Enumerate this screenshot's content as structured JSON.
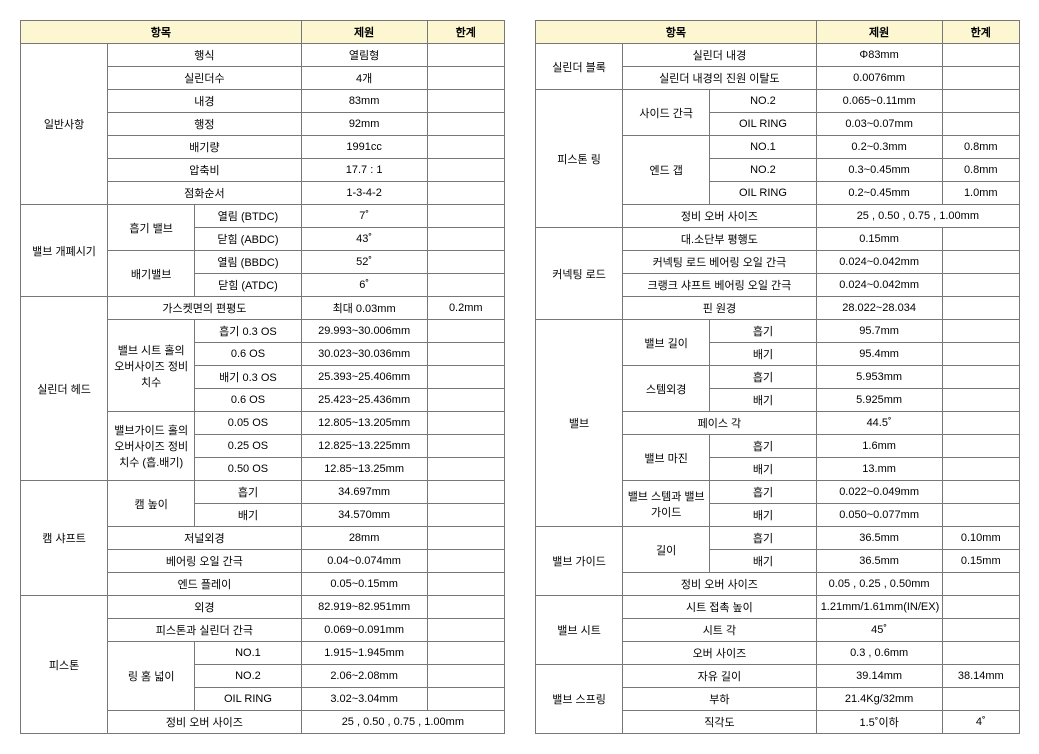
{
  "headers": {
    "item": "항목",
    "spec": "제원",
    "limit": "한계"
  },
  "colors": {
    "header_bg": "#FCF6D1",
    "border": "#777"
  },
  "left": {
    "general": {
      "label": "일반사항",
      "rows": [
        {
          "l": "행식",
          "s": "열림형"
        },
        {
          "l": "실린더수",
          "s": "4개"
        },
        {
          "l": "내경",
          "s": "83mm"
        },
        {
          "l": "행정",
          "s": "92mm"
        },
        {
          "l": "배기량",
          "s": "1991cc"
        },
        {
          "l": "압축비",
          "s": "17.7 : 1"
        },
        {
          "l": "점화순서",
          "s": "1-3-4-2"
        }
      ]
    },
    "valve_timing": {
      "label": "밸브 개폐시기",
      "intake": {
        "label": "흡기 밸브",
        "open": "열림 (BTDC)",
        "open_v": "7˚",
        "close": "닫힘 (ABDC)",
        "close_v": "43˚"
      },
      "exhaust": {
        "label": "배기밸브",
        "open": "열림 (BBDC)",
        "open_v": "52˚",
        "close": "닫힘 (ATDC)",
        "close_v": "6˚"
      }
    },
    "head": {
      "label": "실린더 헤드",
      "flat": {
        "l": "가스켓면의 편평도",
        "s": "최대 0.03mm",
        "lim": "0.2mm"
      },
      "seat": {
        "label": "밸브 시트 홀의 오버사이즈 정비치수",
        "rows": [
          {
            "l": "흡기 0.3 OS",
            "s": "29.993~30.006mm"
          },
          {
            "l": "0.6 OS",
            "s": "30.023~30.036mm"
          },
          {
            "l": "배기 0.3 OS",
            "s": "25.393~25.406mm"
          },
          {
            "l": "0.6 OS",
            "s": "25.423~25.436mm"
          }
        ]
      },
      "guide": {
        "label": "밸브가이드 홀의 오버사이즈 정비치수 (흡.배기)",
        "rows": [
          {
            "l": "0.05 OS",
            "s": "12.805~13.205mm"
          },
          {
            "l": "0.25 OS",
            "s": "12.825~13.225mm"
          },
          {
            "l": "0.50 OS",
            "s": "12.85~13.25mm"
          }
        ]
      }
    },
    "camshaft": {
      "label": "캠 샤프트",
      "camheight": {
        "label": "캠 높이",
        "in": "흡기",
        "in_v": "34.697mm",
        "ex": "배기",
        "ex_v": "34.570mm"
      },
      "journal": {
        "l": "저널외경",
        "s": "28mm"
      },
      "oil": {
        "l": "베어링 오일 간극",
        "s": "0.04~0.074mm"
      },
      "end": {
        "l": "엔드 플레이",
        "s": "0.05~0.15mm"
      }
    },
    "piston": {
      "label": "피스톤",
      "outer": {
        "l": "외경",
        "s": "82.919~82.951mm"
      },
      "clearance": {
        "l": "피스톤과 실린더 간극",
        "s": "0.069~0.091mm"
      },
      "ringgroove": {
        "label": "링 홈 넓이",
        "rows": [
          {
            "l": "NO.1",
            "s": "1.915~1.945mm"
          },
          {
            "l": "NO.2",
            "s": "2.06~2.08mm"
          },
          {
            "l": "OIL RING",
            "s": "3.02~3.04mm"
          }
        ]
      },
      "oversize": {
        "l": "정비 오버 사이즈",
        "s": "25 , 0.50 , 0.75 , 1.00mm"
      }
    }
  },
  "right": {
    "block": {
      "label": "실린더 블록",
      "bore": {
        "l": "실린더 내경",
        "s": "Φ83mm"
      },
      "round": {
        "l": "실린더 내경의 진원 이탈도",
        "s": "0.0076mm"
      }
    },
    "ring": {
      "label": "피스톤 링",
      "side": {
        "label": "사이드 간극",
        "rows": [
          {
            "l": "NO.2",
            "s": "0.065~0.11mm"
          },
          {
            "l": "OIL RING",
            "s": "0.03~0.07mm"
          }
        ]
      },
      "end": {
        "label": "엔드 갭",
        "rows": [
          {
            "l": "NO.1",
            "s": "0.2~0.3mm",
            "lim": "0.8mm"
          },
          {
            "l": "NO.2",
            "s": "0.3~0.45mm",
            "lim": "0.8mm"
          },
          {
            "l": "OIL RING",
            "s": "0.2~0.45mm",
            "lim": "1.0mm"
          }
        ]
      },
      "over": {
        "l": "정비 오버 사이즈",
        "s": "25 , 0.50 , 0.75 , 1.00mm"
      }
    },
    "rod": {
      "label": "커넥팅 로드",
      "rows": [
        {
          "l": "대.소단부 평행도",
          "s": "0.15mm"
        },
        {
          "l": "커넥팅 로드 베어링 오일 간극",
          "s": "0.024~0.042mm"
        },
        {
          "l": "크랭크 샤프트 베어링 오일 간극",
          "s": "0.024~0.042mm"
        },
        {
          "l": "핀 원경",
          "s": "28.022~28.034"
        }
      ]
    },
    "valve": {
      "label": "밸브",
      "len": {
        "label": "밸브 길이",
        "in": "흡기",
        "in_v": "95.7mm",
        "ex": "배기",
        "ex_v": "95.4mm"
      },
      "stem": {
        "label": "스템외경",
        "in": "흡기",
        "in_v": "5.953mm",
        "ex": "배기",
        "ex_v": "5.925mm"
      },
      "face": {
        "l": "페이스 각",
        "s": "44.5˚"
      },
      "margin": {
        "label": "밸브 마진",
        "in": "흡기",
        "in_v": "1.6mm",
        "ex": "배기",
        "ex_v": "13.mm"
      },
      "stemclear": {
        "label": "밸브 스템과 밸브가이드",
        "in": "흡기",
        "in_v": "0.022~0.049mm",
        "ex": "배기",
        "ex_v": "0.050~0.077mm"
      }
    },
    "guide": {
      "label": "밸브 가이드",
      "len": {
        "label": "길이",
        "in": "흡기",
        "in_v": "36.5mm",
        "in_lim": "0.10mm",
        "ex": "배기",
        "ex_v": "36.5mm",
        "ex_lim": "0.15mm"
      },
      "over": {
        "l": "정비 오버 사이즈",
        "s": "0.05 , 0.25 , 0.50mm"
      }
    },
    "seat": {
      "label": "밸브 시트",
      "rows": [
        {
          "l": "시트 접촉 높이",
          "s": "1.21mm/1.61mm(IN/EX)"
        },
        {
          "l": "시트 각",
          "s": "45˚"
        },
        {
          "l": "오버 사이즈",
          "s": "0.3 , 0.6mm"
        }
      ]
    },
    "spring": {
      "label": "밸브 스프링",
      "rows": [
        {
          "l": "자유 길이",
          "s": "39.14mm",
          "lim": "38.14mm"
        },
        {
          "l": "부하",
          "s": "21.4Kg/32mm"
        },
        {
          "l": "직각도",
          "s": "1.5˚이하",
          "lim": "4˚"
        }
      ]
    }
  }
}
